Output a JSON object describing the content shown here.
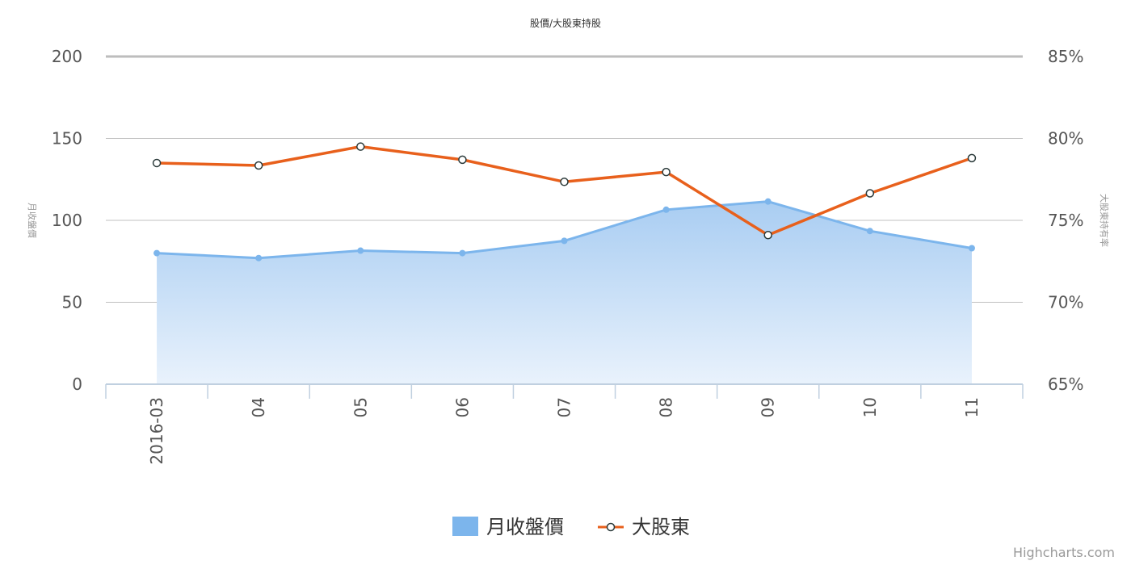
{
  "chart_data": {
    "type": "line",
    "title": "股價/大股東持股",
    "categories": [
      "2016-03",
      "04",
      "05",
      "06",
      "07",
      "08",
      "09",
      "10",
      "11"
    ],
    "y_left": {
      "label": "月收盤價",
      "min": 0,
      "max": 200,
      "ticks": [
        0,
        50,
        100,
        150,
        200
      ]
    },
    "y_right": {
      "label": "大股東持有率",
      "min": 65,
      "max": 85,
      "ticks": [
        65,
        70,
        75,
        80,
        85
      ],
      "tick_labels": [
        "65%",
        "70%",
        "75%",
        "80%",
        "85%"
      ]
    },
    "series": [
      {
        "name": "月收盤價",
        "kind": "area",
        "axis": "left",
        "color": "#7cb5ec",
        "values": [
          80,
          77,
          81.5,
          80,
          87.5,
          106.5,
          111.5,
          93.5,
          83
        ]
      },
      {
        "name": "大股東",
        "kind": "line",
        "axis": "right",
        "color": "#e8601c",
        "values": [
          78.5,
          78.35,
          79.5,
          78.7,
          77.35,
          77.95,
          74.1,
          76.65,
          78.8
        ]
      }
    ],
    "grid": true,
    "legend": "bottom-center"
  },
  "credits": "Highcharts.com"
}
